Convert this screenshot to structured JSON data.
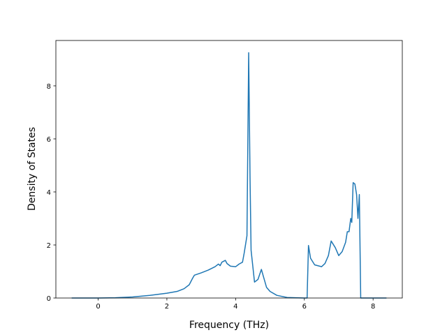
{
  "chart_data": {
    "type": "line",
    "xlabel": "Frequency (THz)",
    "ylabel": "Density of States",
    "x": [
      -0.77,
      0,
      0.5,
      1,
      1.5,
      2,
      2.3,
      2.5,
      2.65,
      2.75,
      2.8,
      3.0,
      3.2,
      3.4,
      3.5,
      3.55,
      3.6,
      3.7,
      3.75,
      3.85,
      4.0,
      4.1,
      4.2,
      4.25,
      4.33,
      4.38,
      4.42,
      4.45,
      4.55,
      4.65,
      4.75,
      4.8,
      4.9,
      5.0,
      5.2,
      5.5,
      6.0,
      6.08,
      6.12,
      6.18,
      6.3,
      6.5,
      6.6,
      6.7,
      6.78,
      6.9,
      7.0,
      7.1,
      7.2,
      7.25,
      7.3,
      7.35,
      7.38,
      7.42,
      7.47,
      7.52,
      7.56,
      7.6,
      7.64,
      8.39
    ],
    "series": [
      {
        "color": "#1f77b4",
        "values": [
          0,
          0,
          0.01,
          0.04,
          0.1,
          0.18,
          0.25,
          0.35,
          0.5,
          0.75,
          0.86,
          0.95,
          1.05,
          1.18,
          1.28,
          1.22,
          1.35,
          1.42,
          1.3,
          1.2,
          1.18,
          1.28,
          1.35,
          1.7,
          2.35,
          9.25,
          4.5,
          1.8,
          0.6,
          0.7,
          1.08,
          0.85,
          0.4,
          0.25,
          0.1,
          0.02,
          0,
          0,
          1.98,
          1.5,
          1.25,
          1.18,
          1.3,
          1.6,
          2.15,
          1.9,
          1.6,
          1.75,
          2.1,
          2.5,
          2.5,
          3.0,
          2.85,
          4.35,
          4.3,
          3.9,
          3.0,
          3.9,
          0,
          0
        ]
      }
    ],
    "xlim": [
      -1.23,
      8.85
    ],
    "ylim": [
      0,
      9.71
    ],
    "xticks": [
      0,
      2,
      4,
      6,
      8
    ],
    "yticks": [
      0,
      2,
      4,
      6,
      8
    ],
    "grid": false
  }
}
